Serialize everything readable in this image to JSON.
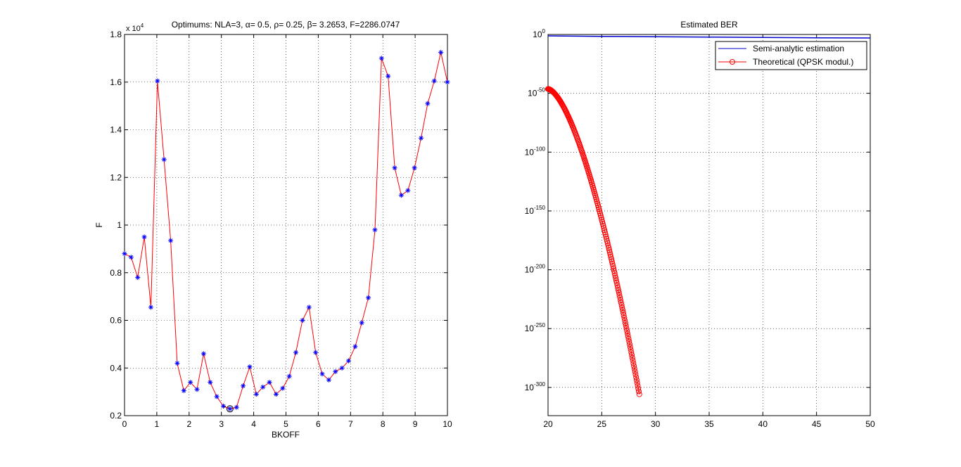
{
  "chart_data": [
    {
      "type": "line",
      "title": "Optimums: NLA=3, α= 0.5, ρ= 0.25, β= 3.2653, F=2286.0747",
      "xlabel": "BKOFF",
      "ylabel": "F",
      "y_exponent_label": "x 10",
      "y_exponent_power": "4",
      "xlim": [
        0,
        10
      ],
      "ylim": [
        0.2,
        1.8
      ],
      "x_ticks": [
        0,
        1,
        2,
        3,
        4,
        5,
        6,
        7,
        8,
        9,
        10
      ],
      "y_ticks": [
        0.2,
        0.4,
        0.6,
        0.8,
        1,
        1.2,
        1.4,
        1.6,
        1.8
      ],
      "grid": true,
      "series": [
        {
          "color": "#ff0000",
          "marker_color": "#0000ff",
          "marker": "star",
          "x": [
            0,
            0.2041,
            0.4082,
            0.6122,
            0.8163,
            1.0204,
            1.2245,
            1.4286,
            1.6327,
            1.8367,
            2.0408,
            2.2449,
            2.449,
            2.6531,
            2.8571,
            3.0612,
            3.2653,
            3.4694,
            3.6735,
            3.8776,
            4.0816,
            4.2857,
            4.4898,
            4.6939,
            4.898,
            5.102,
            5.3061,
            5.5102,
            5.7143,
            5.9184,
            6.1224,
            6.3265,
            6.5306,
            6.7347,
            6.9388,
            7.1429,
            7.3469,
            7.551,
            7.7551,
            7.9592,
            8.1633,
            8.3673,
            8.5714,
            8.7755,
            8.9796,
            9.1837,
            9.3878,
            9.5918,
            9.7959,
            10
          ],
          "y": [
            0.88,
            0.865,
            0.78,
            0.95,
            0.655,
            1.605,
            1.275,
            0.935,
            0.42,
            0.305,
            0.34,
            0.31,
            0.46,
            0.34,
            0.28,
            0.24,
            0.2286,
            0.235,
            0.325,
            0.405,
            0.29,
            0.32,
            0.34,
            0.29,
            0.315,
            0.365,
            0.465,
            0.6,
            0.655,
            0.465,
            0.375,
            0.35,
            0.385,
            0.4,
            0.43,
            0.49,
            0.59,
            0.695,
            0.98,
            1.7,
            1.625,
            1.24,
            1.125,
            1.145,
            1.24,
            1.365,
            1.51,
            1.605,
            1.725,
            1.6
          ]
        }
      ],
      "optimum": {
        "x": 3.2653,
        "y": 0.2286
      }
    },
    {
      "type": "line",
      "title": "Estimated BER",
      "xlabel": "",
      "ylabel": "",
      "xlim": [
        20,
        50
      ],
      "ylim_log10": [
        -324,
        0
      ],
      "yscale": "log",
      "x_ticks": [
        20,
        25,
        30,
        35,
        40,
        45,
        50
      ],
      "y_tick_base": "10",
      "y_tick_exponents": [
        "0",
        "-50",
        "-100",
        "-150",
        "-200",
        "-250",
        "-300"
      ],
      "grid": true,
      "legend": {
        "position": "top-right",
        "entries": [
          "Semi-analytic estimation",
          "Theoretical (QPSK modul.)"
        ]
      },
      "series": [
        {
          "name": "Semi-analytic estimation",
          "color": "#0000cc",
          "x": [
            20,
            25,
            30,
            35,
            40,
            45,
            50
          ],
          "log10_y": [
            -1.2,
            -1.6,
            -1.9,
            -2.2,
            -2.5,
            -2.8,
            -3.0
          ]
        },
        {
          "name": "Theoretical (QPSK modul.)",
          "color": "#ff0000",
          "marker": "circle",
          "x_start": 20,
          "x_end": 28.5,
          "x_step": 0.05,
          "log10_y_at_start": -46.3,
          "log10_y_at_end": -305.8
        }
      ]
    }
  ]
}
